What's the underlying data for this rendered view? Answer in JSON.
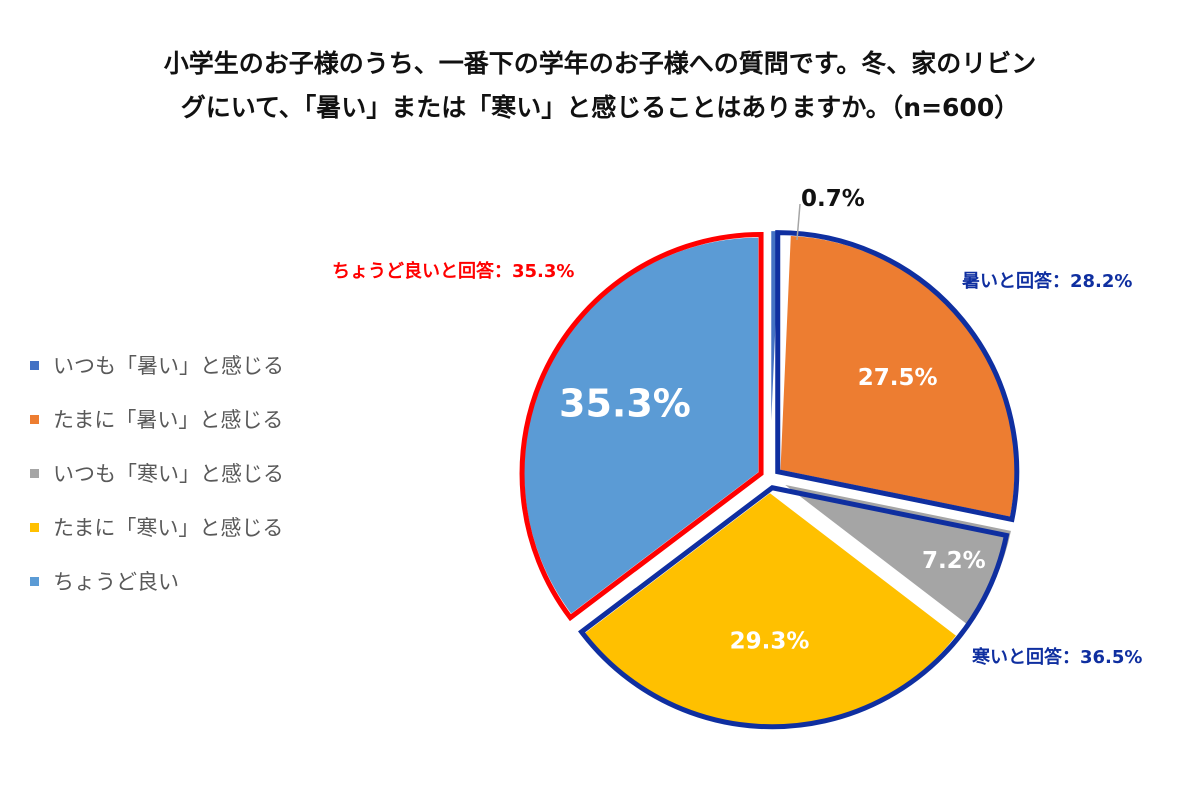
{
  "title_line1": "小学生のお子様のうち、一番下の学年のお子様への質問です。冬、家のリビン",
  "title_line2": "グにいて、「暑い」または「寒い」と感じることはありますか。（n=600）",
  "colors": {
    "blue_outline": "#0F2FA0",
    "red_outline": "#FF0000",
    "red_text": "#FF0000",
    "blue_text": "#0F2FA0"
  },
  "chart_data": {
    "type": "pie",
    "n": 600,
    "slices": [
      {
        "name": "いつも「暑い」と感じる",
        "value": 0.7,
        "label": "0.7%",
        "color": "#4472C4"
      },
      {
        "name": "たまに「暑い」と感じる",
        "value": 27.5,
        "label": "27.5%",
        "color": "#ED7D31"
      },
      {
        "name": "いつも「寒い」と感じる",
        "value": 7.2,
        "label": "7.2%",
        "color": "#A5A5A5"
      },
      {
        "name": "たまに「寒い」と感じる",
        "value": 29.3,
        "label": "29.3%",
        "color": "#FFC000"
      },
      {
        "name": "ちょうど良い",
        "value": 35.3,
        "label": "35.3%",
        "color": "#5B9BD5"
      }
    ],
    "groups": [
      {
        "label": "暑いと回答：28.2%",
        "value": 28.2,
        "color": "#0F2FA0"
      },
      {
        "label": "寒いと回答：36.5%",
        "value": 36.5,
        "color": "#0F2FA0"
      },
      {
        "label": "ちょうど良いと回答：35.3%",
        "value": 35.3,
        "color": "#FF0000"
      }
    ],
    "legend_position": "left"
  }
}
